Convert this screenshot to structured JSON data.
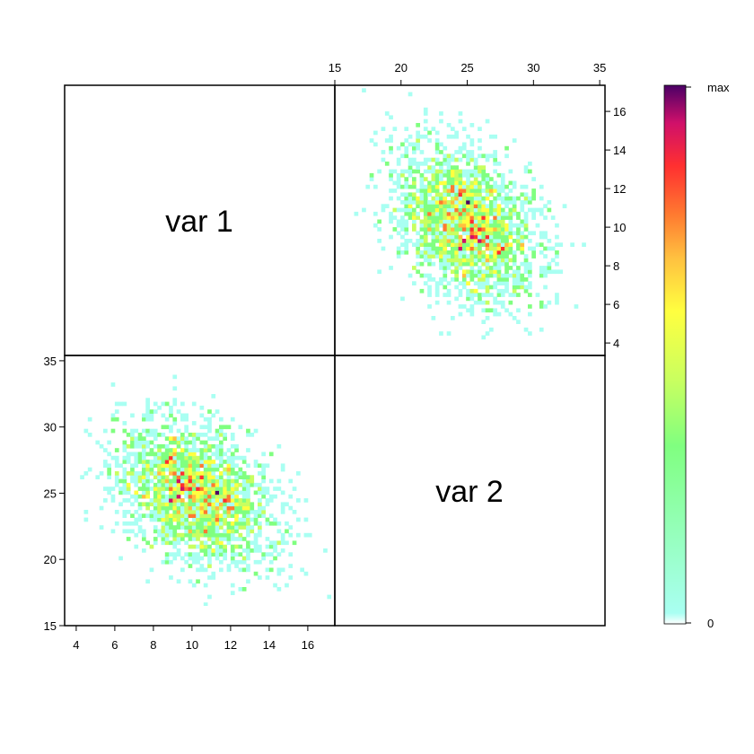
{
  "chart_data": {
    "type": "heatmap",
    "layout": "scatterplot-matrix",
    "panels": [
      {
        "position": "top-left",
        "kind": "label",
        "text": "var 1"
      },
      {
        "position": "top-right",
        "kind": "density",
        "x_var": "var 2",
        "y_var": "var 1"
      },
      {
        "position": "bottom-left",
        "kind": "density",
        "x_var": "var 1",
        "y_var": "var 2"
      },
      {
        "position": "bottom-right",
        "kind": "label",
        "text": "var 2"
      }
    ],
    "var1": {
      "range": [
        3.4,
        17.4
      ],
      "ticks": [
        "4",
        "6",
        "8",
        "10",
        "12",
        "14",
        "16"
      ]
    },
    "var2": {
      "range": [
        15,
        35.4
      ],
      "ticks": [
        "15",
        "20",
        "25",
        "30",
        "35"
      ]
    },
    "distribution": {
      "var1_center": 10.2,
      "var2_center": 25.0,
      "var1_spread": 2.0,
      "var2_spread": 2.7,
      "correlation": -0.3
    },
    "bins": 70,
    "colorbar": {
      "labels": {
        "max": "max",
        "min": "0"
      },
      "colors": [
        "#ffffff",
        "#a9fff2",
        "#80ff80",
        "#c8ff60",
        "#ffff40",
        "#ffc040",
        "#ff7a30",
        "#ff3030",
        "#d0106a",
        "#4b0066"
      ]
    }
  }
}
